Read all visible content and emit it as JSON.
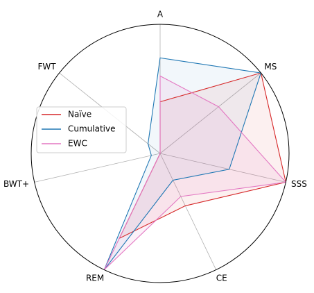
{
  "chart_data": {
    "type": "radar",
    "axes": [
      "A",
      "MS",
      "SSS",
      "CE",
      "REM",
      "BWT+",
      "FWT"
    ],
    "rlim": [
      0,
      1
    ],
    "grid": true,
    "legend_position": "left",
    "series": [
      {
        "name": "Naïve",
        "color": "#d62728",
        "values": [
          0.4,
          1.0,
          1.0,
          0.45,
          0.73,
          0.0,
          0.0
        ],
        "fill_opacity": 0.07
      },
      {
        "name": "Cumulative",
        "color": "#1f77b4",
        "values": [
          0.74,
          1.0,
          0.55,
          0.23,
          1.0,
          0.07,
          0.12
        ],
        "fill_opacity": 0.06
      },
      {
        "name": "EWC",
        "color": "#e377c2",
        "values": [
          0.6,
          0.58,
          1.0,
          0.37,
          1.0,
          0.0,
          0.0
        ],
        "fill_opacity": 0.1
      }
    ]
  }
}
